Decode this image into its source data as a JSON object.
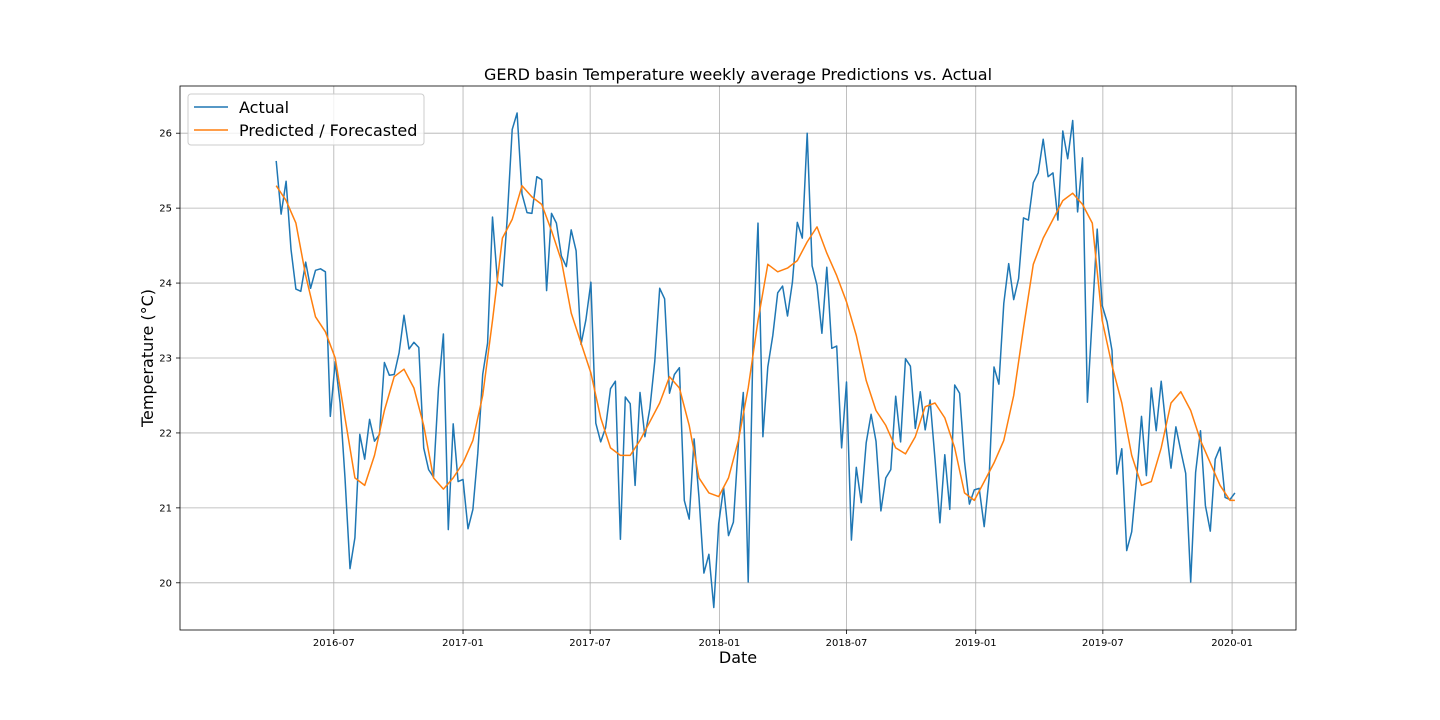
{
  "chart_data": {
    "type": "line",
    "title": "GERD basin Temperature weekly average Predictions vs. Actual",
    "xlabel": "Date",
    "ylabel": "Temperature (°C)",
    "x_ticks": [
      "2016-07",
      "2017-01",
      "2017-07",
      "2018-01",
      "2018-07",
      "2019-01",
      "2019-07",
      "2020-01"
    ],
    "x_tick_days": [
      91,
      275,
      456,
      640,
      821,
      1005,
      1186,
      1370
    ],
    "xlim_days": [
      -128,
      1461
    ],
    "x_origin": "2016-04-01",
    "y_ticks": [
      20,
      21,
      22,
      23,
      24,
      25,
      26
    ],
    "ylim": [
      19.37,
      26.63
    ],
    "grid": true,
    "legend_position": "top-left",
    "colors": {
      "actual": "#1f77b4",
      "predicted": "#ff7f0e"
    },
    "series": [
      {
        "name": "Actual",
        "color": "#1f77b4",
        "x": [
          "2016-04-10",
          "2016-04-17",
          "2016-04-24",
          "2016-05-01",
          "2016-05-08",
          "2016-05-15",
          "2016-05-22",
          "2016-05-29",
          "2016-06-05",
          "2016-06-12",
          "2016-06-19",
          "2016-06-26",
          "2016-07-03",
          "2016-07-10",
          "2016-07-17",
          "2016-07-24",
          "2016-07-31",
          "2016-08-07",
          "2016-08-14",
          "2016-08-21",
          "2016-08-28",
          "2016-09-04",
          "2016-09-11",
          "2016-09-18",
          "2016-09-25",
          "2016-10-02",
          "2016-10-09",
          "2016-10-16",
          "2016-10-23",
          "2016-10-30",
          "2016-11-06",
          "2016-11-13",
          "2016-11-20",
          "2016-11-27",
          "2016-12-04",
          "2016-12-11",
          "2016-12-18",
          "2016-12-25",
          "2017-01-01",
          "2017-01-08",
          "2017-01-15",
          "2017-01-22",
          "2017-01-29",
          "2017-02-05",
          "2017-02-12",
          "2017-02-19",
          "2017-02-26",
          "2017-03-05",
          "2017-03-12",
          "2017-03-19",
          "2017-03-26",
          "2017-04-02",
          "2017-04-09",
          "2017-04-16",
          "2017-04-23",
          "2017-04-30",
          "2017-05-07",
          "2017-05-14",
          "2017-05-21",
          "2017-05-28",
          "2017-06-04",
          "2017-06-11",
          "2017-06-18",
          "2017-06-25",
          "2017-07-02",
          "2017-07-09",
          "2017-07-16",
          "2017-07-23",
          "2017-07-30",
          "2017-08-06",
          "2017-08-13",
          "2017-08-20",
          "2017-08-27",
          "2017-09-03",
          "2017-09-10",
          "2017-09-17",
          "2017-09-24",
          "2017-10-01",
          "2017-10-08",
          "2017-10-15",
          "2017-10-22",
          "2017-10-29",
          "2017-11-05",
          "2017-11-12",
          "2017-11-19",
          "2017-11-26",
          "2017-12-03",
          "2017-12-10",
          "2017-12-17",
          "2017-12-24",
          "2017-12-31",
          "2018-01-07",
          "2018-01-14",
          "2018-01-21",
          "2018-01-28",
          "2018-02-04",
          "2018-02-11",
          "2018-02-18",
          "2018-02-25",
          "2018-03-04",
          "2018-03-11",
          "2018-03-18",
          "2018-03-25",
          "2018-04-01",
          "2018-04-08",
          "2018-04-15",
          "2018-04-22",
          "2018-04-29",
          "2018-05-06",
          "2018-05-13",
          "2018-05-20",
          "2018-05-27",
          "2018-06-03",
          "2018-06-10",
          "2018-06-17",
          "2018-06-24",
          "2018-07-01",
          "2018-07-08",
          "2018-07-15",
          "2018-07-22",
          "2018-07-29",
          "2018-08-05",
          "2018-08-12",
          "2018-08-19",
          "2018-08-26",
          "2018-09-02",
          "2018-09-09",
          "2018-09-16",
          "2018-09-23",
          "2018-09-30",
          "2018-10-07",
          "2018-10-14",
          "2018-10-21",
          "2018-10-28",
          "2018-11-04",
          "2018-11-11",
          "2018-11-18",
          "2018-11-25",
          "2018-12-02",
          "2018-12-09",
          "2018-12-16",
          "2018-12-23",
          "2018-12-30",
          "2019-01-06",
          "2019-01-13",
          "2019-01-20",
          "2019-01-27",
          "2019-02-03",
          "2019-02-10",
          "2019-02-17",
          "2019-02-24",
          "2019-03-03",
          "2019-03-10",
          "2019-03-17",
          "2019-03-24",
          "2019-03-31",
          "2019-04-07",
          "2019-04-14",
          "2019-04-21",
          "2019-04-28",
          "2019-05-05",
          "2019-05-12",
          "2019-05-19",
          "2019-05-26",
          "2019-06-02",
          "2019-06-09",
          "2019-06-16",
          "2019-06-23",
          "2019-06-30",
          "2019-07-07",
          "2019-07-14",
          "2019-07-21",
          "2019-07-28",
          "2019-08-04",
          "2019-08-11",
          "2019-08-18",
          "2019-08-25",
          "2019-09-01",
          "2019-09-08",
          "2019-09-15",
          "2019-09-22",
          "2019-09-29",
          "2019-10-06",
          "2019-10-13",
          "2019-10-20",
          "2019-10-27",
          "2019-11-03",
          "2019-11-10",
          "2019-11-17",
          "2019-11-24",
          "2019-12-01",
          "2019-12-08",
          "2019-12-15",
          "2019-12-22",
          "2019-12-29",
          "2020-01-05"
        ],
        "values": [
          25.63,
          24.92,
          25.36,
          24.45,
          23.92,
          23.89,
          24.28,
          23.93,
          24.17,
          24.19,
          24.15,
          22.22,
          22.95,
          22.4,
          21.4,
          20.19,
          20.6,
          21.98,
          21.65,
          22.18,
          21.89,
          21.98,
          22.94,
          22.77,
          22.78,
          23.07,
          23.57,
          23.12,
          23.21,
          23.14,
          21.8,
          21.51,
          21.41,
          22.6,
          23.32,
          20.71,
          22.12,
          21.35,
          21.38,
          20.72,
          20.98,
          21.73,
          22.78,
          23.2,
          24.88,
          24.02,
          23.96,
          24.88,
          26.05,
          26.27,
          25.19,
          24.94,
          24.93,
          25.42,
          25.38,
          23.9,
          24.93,
          24.8,
          24.36,
          24.22,
          24.71,
          24.43,
          23.18,
          23.51,
          24.01,
          22.13,
          21.88,
          22.07,
          22.59,
          22.69,
          20.58,
          22.48,
          22.39,
          21.3,
          22.54,
          21.95,
          22.33,
          22.96,
          23.93,
          23.79,
          22.53,
          22.78,
          22.87,
          21.1,
          20.85,
          21.92,
          21.14,
          20.13,
          20.38,
          19.67,
          20.79,
          21.27,
          20.63,
          20.81,
          21.86,
          22.54,
          20.01,
          23.24,
          24.8,
          21.95,
          22.88,
          23.3,
          23.87,
          23.96,
          23.56,
          24.01,
          24.81,
          24.6,
          26.0,
          24.23,
          23.97,
          23.33,
          24.21,
          23.13,
          23.16,
          21.8,
          22.68,
          20.57,
          21.54,
          21.07,
          21.87,
          22.25,
          21.89,
          20.96,
          21.4,
          21.51,
          22.49,
          21.88,
          22.99,
          22.89,
          22.06,
          22.55,
          22.04,
          22.44,
          21.65,
          20.8,
          21.71,
          20.98,
          22.64,
          22.53,
          21.62,
          21.05,
          21.24,
          21.26,
          20.75,
          21.4,
          22.88,
          22.65,
          23.73,
          24.26,
          23.78,
          24.06,
          24.87,
          24.84,
          25.34,
          25.47,
          25.92,
          25.42,
          25.47,
          24.84,
          26.03,
          25.66,
          26.17,
          24.95,
          25.67,
          22.41,
          23.56,
          24.72,
          23.7,
          23.48,
          23.1,
          21.45,
          21.79,
          20.43,
          20.68,
          21.39,
          22.22,
          21.43,
          22.6,
          22.03,
          22.69,
          22.06,
          21.53,
          22.08,
          21.76,
          21.46,
          20.01,
          21.47,
          22.03,
          21.03,
          20.69,
          21.65,
          21.81,
          21.14,
          21.11,
          21.2
        ]
      },
      {
        "name": "Predicted / Forecasted",
        "color": "#ff7f0e",
        "x": [
          "2016-04-10",
          "2016-04-24",
          "2016-05-08",
          "2016-05-22",
          "2016-06-05",
          "2016-06-19",
          "2016-07-03",
          "2016-07-17",
          "2016-07-31",
          "2016-08-14",
          "2016-08-28",
          "2016-09-11",
          "2016-09-25",
          "2016-10-09",
          "2016-10-23",
          "2016-11-06",
          "2016-11-20",
          "2016-12-04",
          "2016-12-18",
          "2017-01-01",
          "2017-01-15",
          "2017-01-29",
          "2017-02-12",
          "2017-02-26",
          "2017-03-12",
          "2017-03-26",
          "2017-04-09",
          "2017-04-23",
          "2017-05-07",
          "2017-05-21",
          "2017-06-04",
          "2017-06-18",
          "2017-07-02",
          "2017-07-16",
          "2017-07-30",
          "2017-08-13",
          "2017-08-27",
          "2017-09-10",
          "2017-09-24",
          "2017-10-08",
          "2017-10-22",
          "2017-11-05",
          "2017-11-19",
          "2017-12-03",
          "2017-12-17",
          "2017-12-31",
          "2018-01-14",
          "2018-01-28",
          "2018-02-11",
          "2018-02-25",
          "2018-03-11",
          "2018-03-25",
          "2018-04-08",
          "2018-04-22",
          "2018-05-06",
          "2018-05-20",
          "2018-06-03",
          "2018-06-17",
          "2018-07-01",
          "2018-07-15",
          "2018-07-29",
          "2018-08-12",
          "2018-08-26",
          "2018-09-09",
          "2018-09-23",
          "2018-10-07",
          "2018-10-21",
          "2018-11-04",
          "2018-11-18",
          "2018-12-02",
          "2018-12-16",
          "2018-12-30",
          "2019-01-13",
          "2019-01-27",
          "2019-02-10",
          "2019-02-24",
          "2019-03-10",
          "2019-03-24",
          "2019-04-07",
          "2019-04-21",
          "2019-05-05",
          "2019-05-19",
          "2019-06-02",
          "2019-06-16",
          "2019-06-30",
          "2019-07-14",
          "2019-07-28",
          "2019-08-11",
          "2019-08-25",
          "2019-09-08",
          "2019-09-22",
          "2019-10-06",
          "2019-10-20",
          "2019-11-03",
          "2019-11-17",
          "2019-12-01",
          "2019-12-15",
          "2019-12-29",
          "2020-01-05"
        ],
        "values": [
          25.3,
          25.1,
          24.8,
          24.1,
          23.55,
          23.35,
          23.0,
          22.2,
          21.4,
          21.3,
          21.7,
          22.3,
          22.75,
          22.85,
          22.6,
          22.1,
          21.4,
          21.25,
          21.4,
          21.6,
          21.9,
          22.5,
          23.5,
          24.6,
          24.85,
          25.3,
          25.15,
          25.05,
          24.7,
          24.3,
          23.6,
          23.2,
          22.8,
          22.2,
          21.8,
          21.7,
          21.7,
          21.9,
          22.15,
          22.4,
          22.75,
          22.6,
          22.1,
          21.4,
          21.2,
          21.15,
          21.4,
          21.9,
          22.6,
          23.5,
          24.25,
          24.15,
          24.2,
          24.3,
          24.55,
          24.75,
          24.4,
          24.1,
          23.75,
          23.3,
          22.7,
          22.3,
          22.1,
          21.8,
          21.72,
          21.95,
          22.35,
          22.4,
          22.2,
          21.8,
          21.2,
          21.1,
          21.35,
          21.6,
          21.9,
          22.5,
          23.4,
          24.25,
          24.6,
          24.85,
          25.1,
          25.2,
          25.05,
          24.8,
          23.5,
          22.9,
          22.4,
          21.7,
          21.3,
          21.35,
          21.8,
          22.4,
          22.55,
          22.3,
          21.9,
          21.6,
          21.3,
          21.1,
          21.1
        ]
      }
    ]
  }
}
